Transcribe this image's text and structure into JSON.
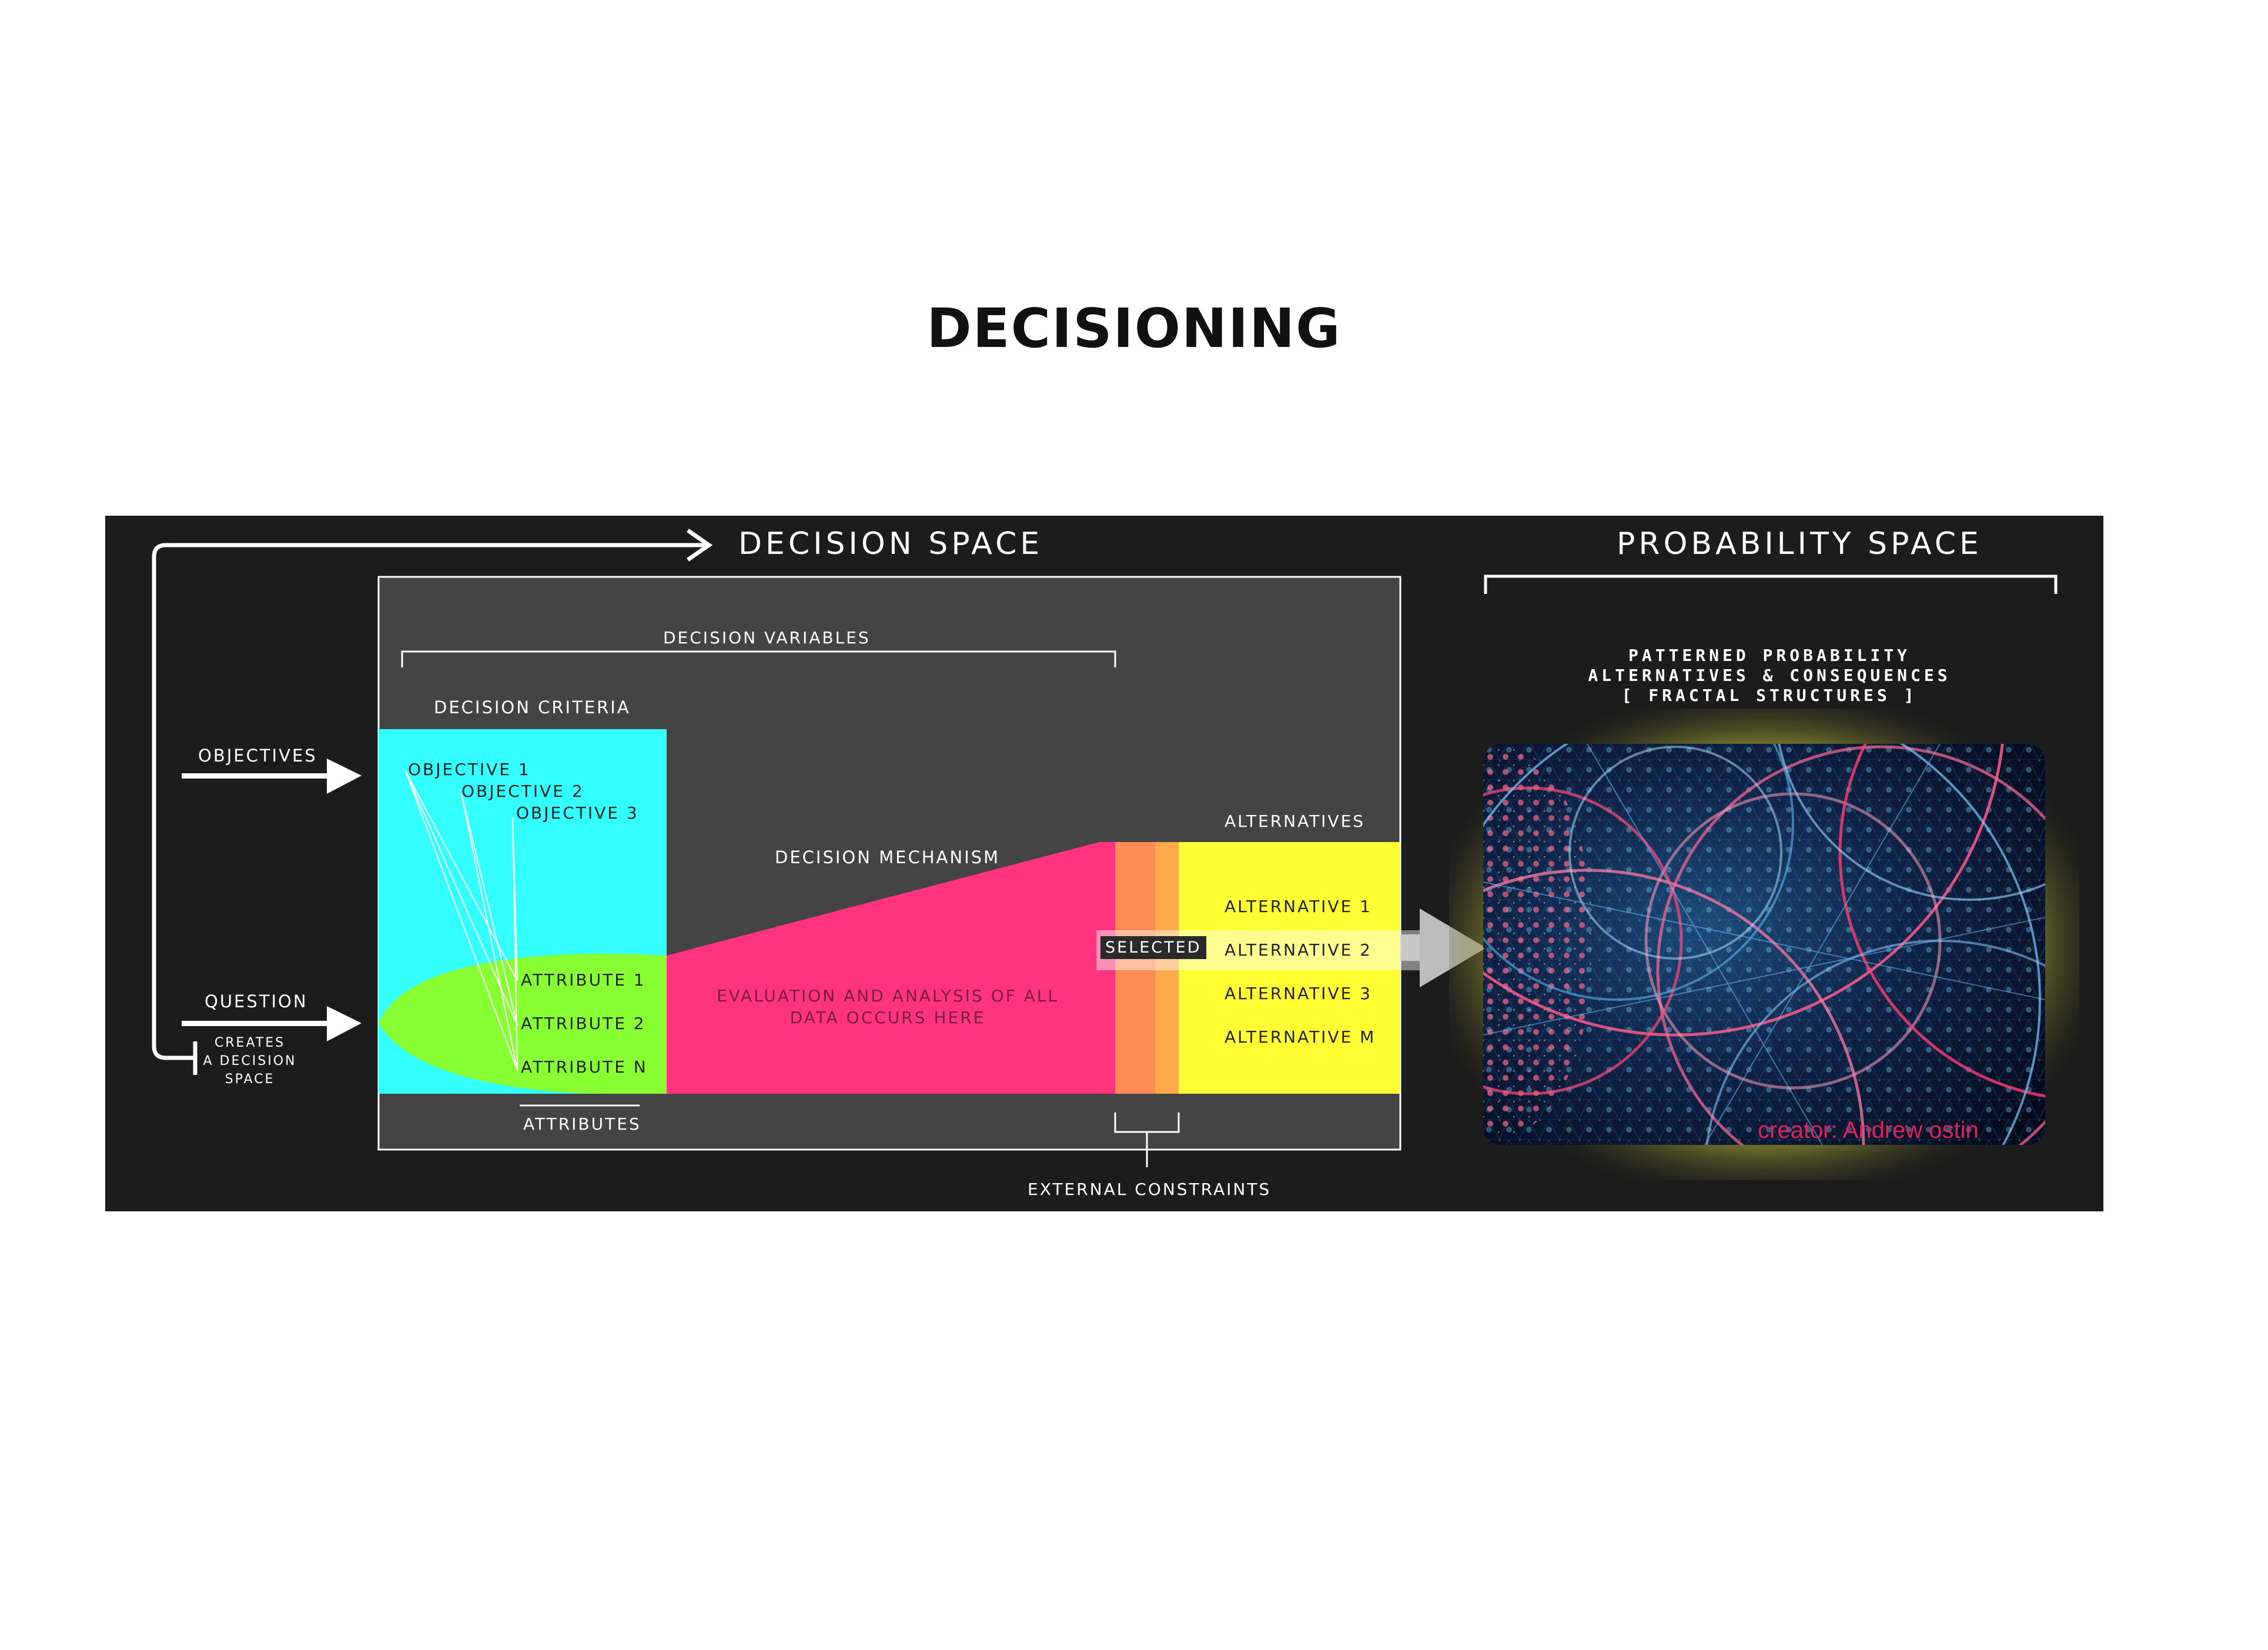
{
  "title": "DECISIONING",
  "headers": {
    "decision_space": "DECISION SPACE",
    "probability_space": "PROBABILITY SPACE"
  },
  "inputs": {
    "objectives": "OBJECTIVES",
    "question": "QUESTION",
    "creates": [
      "CREATES",
      "A DECISION",
      "SPACE"
    ]
  },
  "decision_box": {
    "decision_variables": "DECISION VARIABLES",
    "decision_criteria": "DECISION CRITERIA",
    "objectives": [
      "OBJECTIVE 1",
      "OBJECTIVE 2",
      "OBJECTIVE 3"
    ],
    "attributes": [
      "ATTRIBUTE 1",
      "ATTRIBUTE 2",
      "ATTRIBUTE N"
    ],
    "attributes_label": "ATTRIBUTES",
    "decision_mechanism": "DECISION MECHANISM",
    "evaluation": [
      "EVALUATION AND ANALYSIS OF ALL",
      "DATA OCCURS HERE"
    ],
    "alternatives_label": "ALTERNATIVES",
    "alternatives": [
      "ALTERNATIVE 1",
      "ALTERNATIVE 2",
      "ALTERNATIVE 3",
      "ALTERNATIVE M"
    ],
    "selected": "SELECTED",
    "external_constraints": "EXTERNAL CONSTRAINTS"
  },
  "probability": {
    "lines": [
      "PATTERNED PROBABILITY",
      "ALTERNATIVES & CONSEQUENCES",
      "[ FRACTAL STRUCTURES ]"
    ],
    "credit": "creator: Andrew ostin"
  },
  "colors": {
    "panel": "#1c1c1c",
    "decision_box": "#444444",
    "criteria": "#33ffff",
    "attributes": "#88ff33",
    "mechanism": "#ff3380",
    "constraint_a": "#ff8c55",
    "constraint_b": "#ffaa4a",
    "alternatives": "#ffff33",
    "glow": "#e8e83a"
  }
}
